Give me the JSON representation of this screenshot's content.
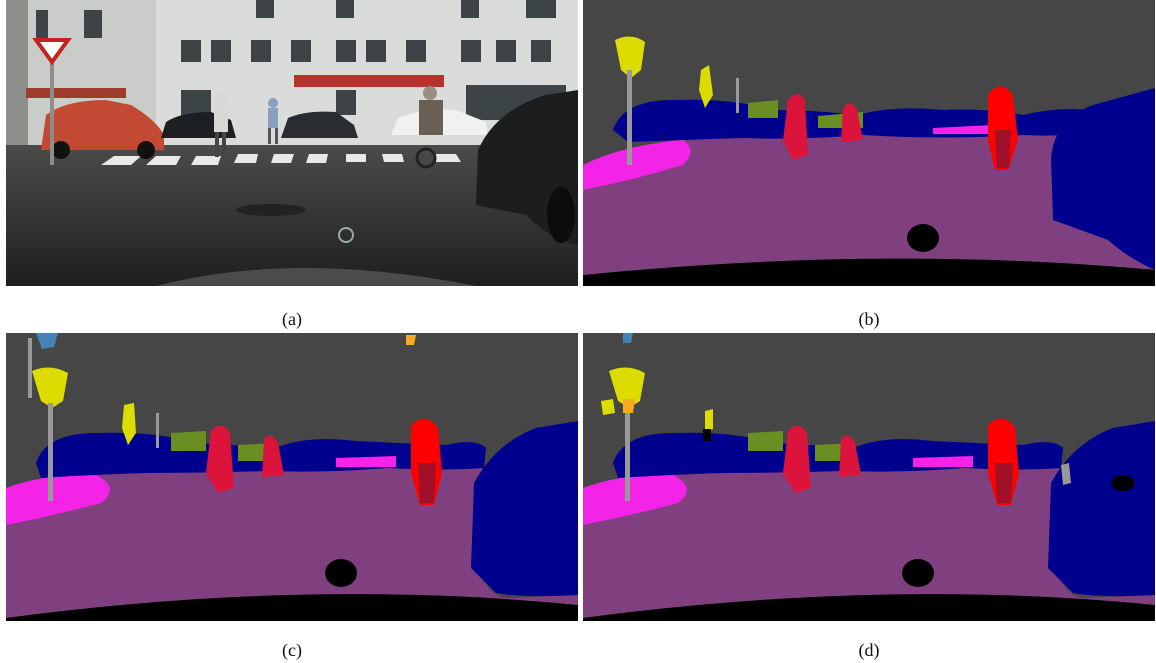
{
  "captions": {
    "a": "(a)",
    "b": "(b)",
    "c": "(c)",
    "d": "(d)"
  },
  "panels": [
    {
      "id": "a",
      "content": "street-scene-photo"
    },
    {
      "id": "b",
      "content": "semantic-segmentation-map"
    },
    {
      "id": "c",
      "content": "semantic-segmentation-map"
    },
    {
      "id": "d",
      "content": "semantic-segmentation-map"
    }
  ],
  "colors": {
    "road": "#804080",
    "sidewalk": "#f423e8",
    "building": "#464646",
    "car": "#00008e",
    "person": "#dc143c",
    "rider": "#ff0000",
    "pole": "#999999",
    "traffic_sign": "#dcdc00",
    "vegetation": "#6b8e23",
    "unlabeled": "#000000"
  }
}
